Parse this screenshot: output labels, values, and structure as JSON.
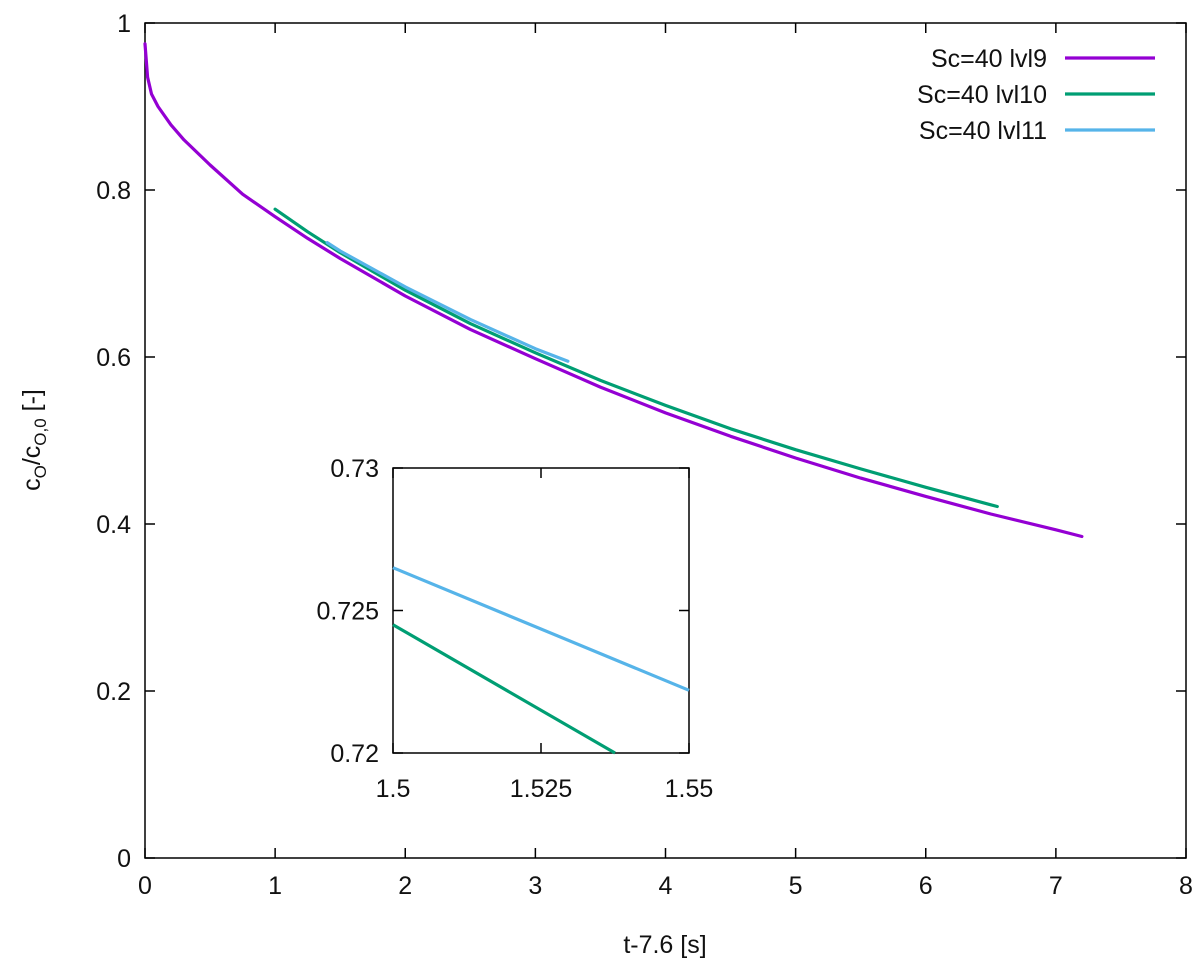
{
  "chart_data": {
    "type": "line",
    "xlabel": "t-7.6 [s]",
    "ylabel": {
      "c1": "c",
      "s1": "O",
      "slash": "/c",
      "s2": "O,0",
      "tail": " [-]"
    },
    "xlim": [
      0,
      8
    ],
    "ylim": [
      0,
      1
    ],
    "xticks": [
      0,
      1,
      2,
      3,
      4,
      5,
      6,
      7,
      8
    ],
    "yticks": [
      0,
      0.2,
      0.4,
      0.6,
      0.8,
      1
    ],
    "xtick_labels": [
      "0",
      "1",
      "2",
      "3",
      "4",
      "5",
      "6",
      "7",
      "8"
    ],
    "ytick_labels": [
      "0",
      "0.2",
      "0.4",
      "0.6",
      "0.8",
      "1"
    ],
    "grid": false,
    "legend_position": "top-right",
    "series": [
      {
        "name": "Sc=40 lvl9",
        "color": "#9400d3",
        "x": [
          0,
          0.02,
          0.05,
          0.1,
          0.2,
          0.3,
          0.5,
          0.75,
          1,
          1.25,
          1.5,
          2,
          2.5,
          3,
          3.5,
          4,
          4.5,
          5,
          5.5,
          6,
          6.5,
          7,
          7.2
        ],
        "y": [
          0.975,
          0.935,
          0.915,
          0.9,
          0.878,
          0.86,
          0.83,
          0.795,
          0.768,
          0.742,
          0.718,
          0.673,
          0.633,
          0.598,
          0.564,
          0.533,
          0.505,
          0.479,
          0.455,
          0.433,
          0.412,
          0.393,
          0.385
        ]
      },
      {
        "name": "Sc=40 lvl10",
        "color": "#009e73",
        "x": [
          1,
          1.25,
          1.5,
          2,
          2.5,
          3,
          3.5,
          4,
          4.5,
          5,
          5.5,
          6,
          6.5,
          6.55
        ],
        "y": [
          0.777,
          0.75,
          0.725,
          0.68,
          0.64,
          0.605,
          0.572,
          0.542,
          0.514,
          0.489,
          0.466,
          0.444,
          0.423,
          0.421
        ]
      },
      {
        "name": "Sc=40 lvl11",
        "color": "#56b4e9",
        "x": [
          1.4,
          1.5,
          2,
          2.5,
          3,
          3.25
        ],
        "y": [
          0.737,
          0.727,
          0.684,
          0.645,
          0.61,
          0.595
        ]
      }
    ],
    "inset": {
      "xlim": [
        1.5,
        1.55
      ],
      "ylim": [
        0.72,
        0.73
      ],
      "xticks": [
        1.5,
        1.525,
        1.55
      ],
      "yticks": [
        0.72,
        0.725,
        0.73
      ],
      "xtick_labels": [
        "1.5",
        "1.525",
        "1.55"
      ],
      "ytick_labels": [
        "0.72",
        "0.725",
        "0.73"
      ],
      "series": [
        {
          "name": "Sc=40 lvl10",
          "color": "#009e73",
          "x": [
            1.5,
            1.5375
          ],
          "y": [
            0.7245,
            0.72
          ]
        },
        {
          "name": "Sc=40 lvl11",
          "color": "#56b4e9",
          "x": [
            1.5,
            1.55
          ],
          "y": [
            0.7265,
            0.7222
          ]
        }
      ]
    }
  }
}
